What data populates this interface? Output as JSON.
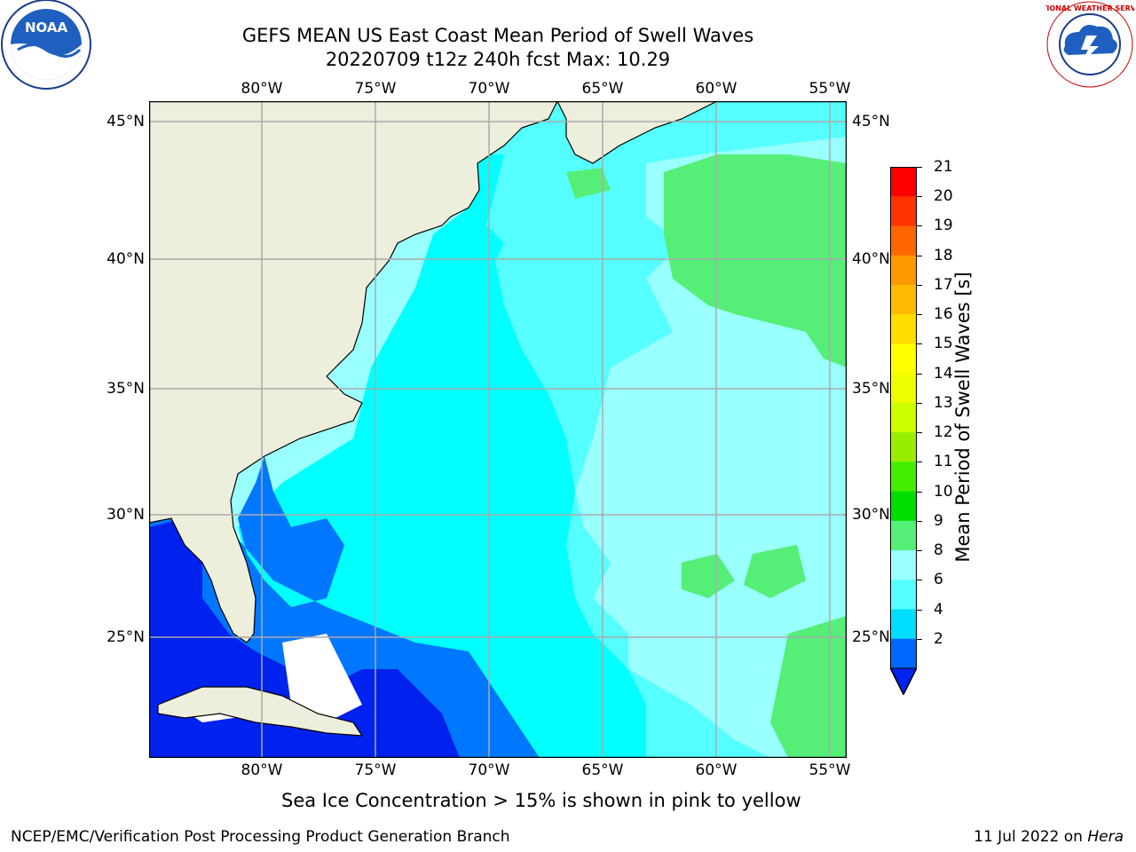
{
  "title": {
    "line1": "GEFS MEAN US East Coast Mean Period of Swell Waves",
    "line2": "20220709 t12z 240h fcst   Max: 10.29"
  },
  "logos": {
    "left": {
      "name": "NOAA",
      "text": "NOAA"
    },
    "right": {
      "name": "National Weather Service",
      "text": "NATIONAL WEATHER SERVICE"
    }
  },
  "map": {
    "lon_labels": [
      "80°W",
      "75°W",
      "70°W",
      "65°W",
      "60°W",
      "55°W"
    ],
    "lat_labels": [
      "45°N",
      "40°N",
      "35°N",
      "30°N",
      "25°N"
    ],
    "lon_range": [
      -85,
      -54
    ],
    "lat_range": [
      20.5,
      46
    ]
  },
  "colorbar": {
    "label": "Mean Period of Swell Waves [s]",
    "ticks": [
      "2",
      "4",
      "6",
      "8",
      "9",
      "10",
      "11",
      "12",
      "13",
      "14",
      "15",
      "16",
      "17",
      "18",
      "19",
      "20",
      "21"
    ],
    "colors": [
      "#0066ff",
      "#00ddff",
      "#55ffff",
      "#99ffff",
      "#55ee77",
      "#00dd00",
      "#44ee00",
      "#99ee00",
      "#ccff00",
      "#eeff00",
      "#ffff00",
      "#ffdd00",
      "#ffbb00",
      "#ff9900",
      "#ff6600",
      "#ff3300",
      "#ff0000"
    ],
    "under_color": "#0022ee"
  },
  "colors": {
    "land": "#eeeedc",
    "deep_blue": "#0022ee",
    "blue": "#0077ff",
    "cyan": "#00ddff",
    "light_cyan": "#55ffff",
    "pale_cyan": "#99ffff",
    "green": "#55ee77",
    "grid": "#aaaaaa"
  },
  "footer": {
    "note": "Sea Ice Concentration > 15% is shown in pink to yellow",
    "left": "NCEP/EMC/Verification Post Processing Product Generation Branch",
    "date": "11 Jul 2022 on ",
    "machine": "Hera"
  }
}
